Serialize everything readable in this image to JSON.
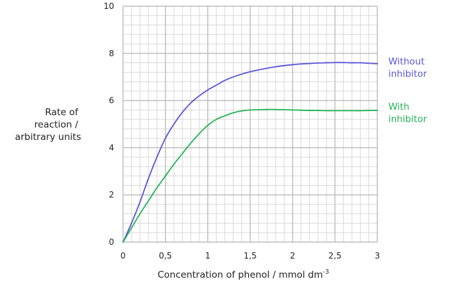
{
  "chart_data": {
    "type": "line",
    "title": "",
    "xlabel": "Concentration of phenol / mmol dm",
    "xlabel_superscript": "-3",
    "ylabel_lines": [
      "Rate of",
      "reaction /",
      "arbitrary units"
    ],
    "xlim": [
      0,
      3
    ],
    "ylim": [
      0,
      10
    ],
    "x_ticks": [
      0,
      0.5,
      1,
      1.5,
      2,
      2.5,
      3
    ],
    "x_tick_labels": [
      "0",
      "0,5",
      "1",
      "1,5",
      "2",
      "2,5",
      "3"
    ],
    "y_ticks": [
      0,
      2,
      4,
      6,
      8,
      10
    ],
    "y_tick_labels": [
      "0",
      "2",
      "4",
      "6",
      "8",
      "10"
    ],
    "grid": true,
    "minor_grid_step_x": 0.1,
    "minor_grid_step_y": 0.4,
    "legend_placement": "right, labels at line ends",
    "series": [
      {
        "name_lines": [
          "Without",
          "inhibitor"
        ],
        "color": "#5b55d6",
        "x": [
          0,
          0.1,
          0.2,
          0.3,
          0.4,
          0.5,
          0.6,
          0.7,
          0.8,
          0.9,
          1.0,
          1.1,
          1.2,
          1.3,
          1.4,
          1.5,
          1.6,
          1.7,
          1.8,
          1.9,
          2.0,
          2.1,
          2.2,
          2.3,
          2.4,
          2.5,
          2.6,
          2.7,
          2.8,
          2.9,
          3.0
        ],
        "y": [
          0,
          0.8,
          1.7,
          2.7,
          3.6,
          4.4,
          5.0,
          5.5,
          5.9,
          6.2,
          6.45,
          6.65,
          6.85,
          7.0,
          7.12,
          7.22,
          7.3,
          7.37,
          7.43,
          7.48,
          7.52,
          7.55,
          7.57,
          7.59,
          7.6,
          7.61,
          7.61,
          7.6,
          7.6,
          7.58,
          7.56
        ]
      },
      {
        "name_lines": [
          "With",
          "inhibitor"
        ],
        "color": "#22b455",
        "x": [
          0,
          0.1,
          0.2,
          0.3,
          0.4,
          0.5,
          0.6,
          0.7,
          0.8,
          0.9,
          1.0,
          1.1,
          1.2,
          1.3,
          1.4,
          1.5,
          1.6,
          1.7,
          1.8,
          1.9,
          2.0,
          2.1,
          2.2,
          2.3,
          2.4,
          2.5,
          2.6,
          2.7,
          2.8,
          2.9,
          3.0
        ],
        "y": [
          0,
          0.6,
          1.2,
          1.75,
          2.3,
          2.8,
          3.3,
          3.75,
          4.2,
          4.6,
          4.95,
          5.2,
          5.35,
          5.48,
          5.56,
          5.6,
          5.61,
          5.62,
          5.62,
          5.61,
          5.6,
          5.59,
          5.58,
          5.58,
          5.57,
          5.57,
          5.57,
          5.57,
          5.57,
          5.58,
          5.58
        ]
      }
    ]
  }
}
